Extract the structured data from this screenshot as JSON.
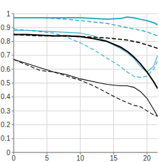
{
  "chart_data": {
    "type": "line",
    "x": [
      0,
      2,
      4,
      6,
      8,
      10,
      12,
      14,
      16,
      17,
      18,
      19,
      20,
      21,
      21.6
    ],
    "series": [
      {
        "color": "#2fa9c6",
        "line_style": "solid",
        "values": [
          0.97,
          0.97,
          0.97,
          0.97,
          0.97,
          0.97,
          0.965,
          0.96,
          0.965,
          0.975,
          0.97,
          0.96,
          0.95,
          0.935,
          0.92
        ]
      },
      {
        "color": "#2fa9c6",
        "line_style": "dashed",
        "values": [
          0.97,
          0.97,
          0.97,
          0.965,
          0.96,
          0.95,
          0.94,
          0.93,
          0.91,
          0.9,
          0.89,
          0.88,
          0.87,
          0.85,
          0.84
        ]
      },
      {
        "color": "#2fa9c6",
        "line_style": "solid",
        "values": [
          0.88,
          0.88,
          0.875,
          0.87,
          0.865,
          0.86,
          0.84,
          0.8,
          0.75,
          0.72,
          0.68,
          0.62,
          0.58,
          0.62,
          0.7
        ]
      },
      {
        "color": "#2fa9c6",
        "line_style": "dashed",
        "values": [
          0.89,
          0.88,
          0.87,
          0.86,
          0.83,
          0.79,
          0.74,
          0.68,
          0.62,
          0.58,
          0.55,
          0.54,
          0.55,
          0.6,
          0.66
        ]
      },
      {
        "color": "#000000",
        "line_style": "solid",
        "values": [
          0.85,
          0.85,
          0.845,
          0.84,
          0.84,
          0.835,
          0.82,
          0.8,
          0.76,
          0.73,
          0.69,
          0.64,
          0.58,
          0.51,
          0.46
        ]
      },
      {
        "color": "#000000",
        "line_style": "dashed",
        "values": [
          0.85,
          0.845,
          0.84,
          0.84,
          0.84,
          0.835,
          0.83,
          0.825,
          0.815,
          0.81,
          0.8,
          0.79,
          0.775,
          0.76,
          0.75
        ]
      },
      {
        "color": "#000000",
        "line_style": "solid",
        "values": [
          0.67,
          0.64,
          0.61,
          0.58,
          0.56,
          0.53,
          0.51,
          0.49,
          0.48,
          0.48,
          0.47,
          0.44,
          0.39,
          0.31,
          0.26
        ]
      },
      {
        "color": "#000000",
        "line_style": "dashed",
        "values": [
          0.67,
          0.63,
          0.59,
          0.58,
          0.55,
          0.52,
          0.48,
          0.43,
          0.38,
          0.36,
          0.34,
          0.33,
          0.3,
          0.27,
          0.26
        ]
      }
    ],
    "xlim": [
      0,
      21.6
    ],
    "xticks": [
      0,
      5,
      10,
      15,
      20
    ],
    "ylim": [
      0,
      1
    ],
    "yticks": [
      0,
      0.1,
      0.2,
      0.3,
      0.4,
      0.5,
      0.6,
      0.7,
      0.8,
      0.9,
      1
    ],
    "grid": true
  }
}
